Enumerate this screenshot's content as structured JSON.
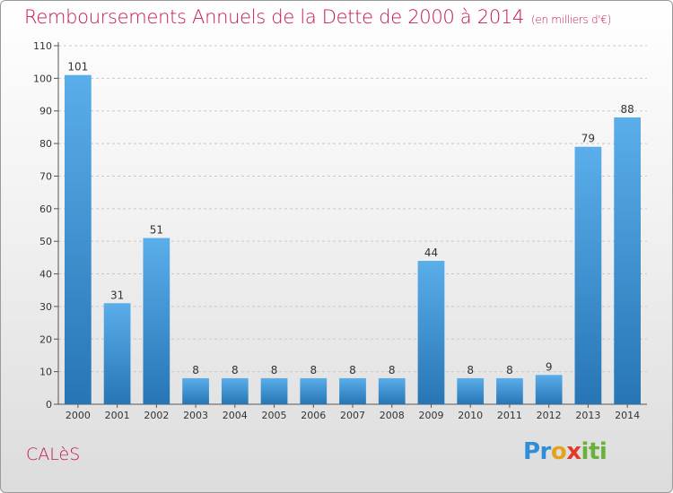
{
  "header": {
    "title": "Remboursements Annuels de la Dette de 2000 à 2014",
    "subtitle": "(en milliers d'€)"
  },
  "footer": {
    "commune": "CALèS",
    "logo_parts": [
      "Pr",
      "o",
      "x",
      "iti"
    ]
  },
  "colors": {
    "accent": "#c4174f",
    "bar_top": "#5aaeea",
    "bar_bottom": "#2775b5"
  },
  "chart_data": {
    "type": "bar",
    "title": "Remboursements Annuels de la Dette de 2000 à 2014",
    "subtitle": "(en milliers d'€)",
    "categories": [
      "2000",
      "2001",
      "2002",
      "2003",
      "2004",
      "2005",
      "2006",
      "2007",
      "2008",
      "2009",
      "2010",
      "2011",
      "2012",
      "2013",
      "2014"
    ],
    "values": [
      101,
      31,
      51,
      8,
      8,
      8,
      8,
      8,
      8,
      44,
      8,
      8,
      9,
      79,
      88
    ],
    "ylim": [
      0,
      110
    ],
    "yticks": [
      0,
      10,
      20,
      30,
      40,
      50,
      60,
      70,
      80,
      90,
      100,
      110
    ],
    "grid": true
  }
}
